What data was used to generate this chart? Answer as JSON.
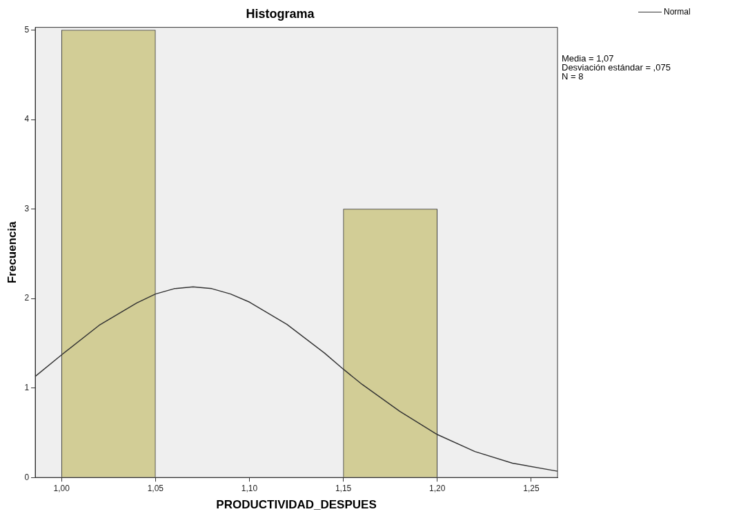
{
  "chart_data": {
    "type": "histogram",
    "title": "Histograma",
    "xlabel": "PRODUCTIVIDAD_DESPUES",
    "ylabel": "Frecuencia",
    "bins": [
      1.0,
      1.05,
      1.1,
      1.15,
      1.2
    ],
    "values": [
      5,
      0,
      0,
      3
    ],
    "color": "#d2cd96",
    "series": [
      {
        "name": "Normal",
        "type": "line",
        "color": "#333333",
        "x": [
          0.986,
          1.0,
          1.02,
          1.04,
          1.05,
          1.06,
          1.07,
          1.08,
          1.09,
          1.1,
          1.12,
          1.14,
          1.15,
          1.16,
          1.18,
          1.2,
          1.22,
          1.24,
          1.264
        ],
        "values": [
          1.13,
          1.37,
          1.7,
          1.95,
          2.05,
          2.11,
          2.13,
          2.11,
          2.05,
          1.96,
          1.71,
          1.39,
          1.21,
          1.04,
          0.74,
          0.48,
          0.29,
          0.16,
          0.07
        ]
      }
    ],
    "xlim": [
      0.986,
      1.264
    ],
    "xticks": [
      {
        "value": 1.0,
        "label": "1,00"
      },
      {
        "value": 1.05,
        "label": "1,05"
      },
      {
        "value": 1.1,
        "label": "1,10"
      },
      {
        "value": 1.15,
        "label": "1,15"
      },
      {
        "value": 1.2,
        "label": "1,20"
      },
      {
        "value": 1.25,
        "label": "1,25"
      }
    ],
    "ylim": [
      0,
      5.03
    ],
    "yticks": [
      0,
      1,
      2,
      3,
      4,
      5
    ],
    "annotations": [
      "Media = 1,07",
      "Desviación estándar = ,075",
      "N = 8"
    ],
    "legend": "top right",
    "grid": false,
    "marker": "none",
    "line_style": "solid"
  }
}
